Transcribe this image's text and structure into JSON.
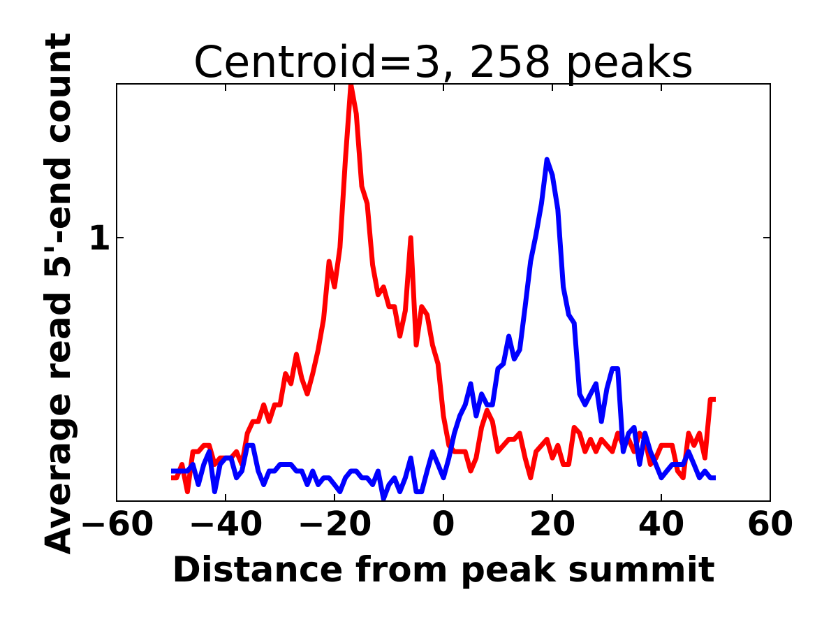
{
  "chart_data": {
    "type": "line",
    "title": "Centroid=3, 258 peaks",
    "xlabel": "Distance from peak summit",
    "ylabel": "Average read 5'-end count",
    "x": [
      -50,
      -49,
      -48,
      -47,
      -46,
      -45,
      -44,
      -43,
      -42,
      -41,
      -40,
      -39,
      -38,
      -37,
      -36,
      -35,
      -34,
      -33,
      -32,
      -31,
      -30,
      -29,
      -28,
      -27,
      -26,
      -25,
      -24,
      -23,
      -22,
      -21,
      -20,
      -19,
      -18,
      -17,
      -16,
      -15,
      -14,
      -13,
      -12,
      -11,
      -10,
      -9,
      -8,
      -7,
      -6,
      -5,
      -4,
      -3,
      -2,
      -1,
      0,
      1,
      2,
      3,
      4,
      5,
      6,
      7,
      8,
      9,
      10,
      11,
      12,
      13,
      14,
      15,
      16,
      17,
      18,
      19,
      20,
      21,
      22,
      23,
      24,
      25,
      26,
      27,
      28,
      29,
      30,
      31,
      32,
      33,
      34,
      35,
      36,
      37,
      38,
      39,
      40,
      41,
      42,
      43,
      44,
      45,
      46,
      47,
      48,
      49,
      50
    ],
    "series": [
      {
        "color": "#ff0000",
        "values": [
          0.48,
          0.48,
          0.5,
          0.46,
          0.52,
          0.52,
          0.53,
          0.53,
          0.5,
          0.51,
          0.51,
          0.51,
          0.52,
          0.5,
          0.55,
          0.57,
          0.57,
          0.6,
          0.57,
          0.6,
          0.6,
          0.66,
          0.64,
          0.7,
          0.65,
          0.62,
          0.66,
          0.71,
          0.78,
          0.93,
          0.86,
          0.97,
          1.27,
          1.6,
          1.46,
          1.17,
          1.11,
          0.92,
          0.84,
          0.86,
          0.81,
          0.81,
          0.74,
          0.8,
          1.0,
          0.72,
          0.81,
          0.79,
          0.72,
          0.68,
          0.58,
          0.53,
          0.52,
          0.52,
          0.52,
          0.49,
          0.51,
          0.56,
          0.59,
          0.57,
          0.52,
          0.53,
          0.54,
          0.54,
          0.55,
          0.51,
          0.48,
          0.52,
          0.53,
          0.54,
          0.51,
          0.53,
          0.5,
          0.5,
          0.56,
          0.55,
          0.52,
          0.54,
          0.52,
          0.54,
          0.53,
          0.52,
          0.55,
          0.53,
          0.54,
          0.52,
          0.55,
          0.54,
          0.5,
          0.51,
          0.53,
          0.53,
          0.53,
          0.49,
          0.48,
          0.55,
          0.53,
          0.55,
          0.51,
          0.61,
          0.61
        ]
      },
      {
        "color": "#0000ff",
        "values": [
          0.49,
          0.49,
          0.49,
          0.49,
          0.5,
          0.47,
          0.5,
          0.52,
          0.46,
          0.5,
          0.51,
          0.51,
          0.48,
          0.49,
          0.53,
          0.53,
          0.49,
          0.47,
          0.49,
          0.49,
          0.5,
          0.5,
          0.5,
          0.49,
          0.49,
          0.47,
          0.49,
          0.47,
          0.48,
          0.48,
          0.47,
          0.46,
          0.48,
          0.49,
          0.49,
          0.48,
          0.48,
          0.47,
          0.49,
          0.45,
          0.47,
          0.48,
          0.46,
          0.48,
          0.51,
          0.46,
          0.46,
          0.49,
          0.52,
          0.5,
          0.48,
          0.51,
          0.55,
          0.58,
          0.6,
          0.64,
          0.58,
          0.62,
          0.6,
          0.6,
          0.67,
          0.68,
          0.74,
          0.69,
          0.71,
          0.81,
          0.93,
          1.01,
          1.11,
          1.27,
          1.21,
          1.09,
          0.86,
          0.79,
          0.77,
          0.62,
          0.6,
          0.62,
          0.64,
          0.57,
          0.63,
          0.67,
          0.67,
          0.52,
          0.55,
          0.56,
          0.5,
          0.55,
          0.52,
          0.5,
          0.48,
          0.49,
          0.5,
          0.5,
          0.5,
          0.52,
          0.5,
          0.48,
          0.49,
          0.48,
          0.48
        ]
      }
    ],
    "xlim": [
      -60,
      60
    ],
    "xticks": [
      {
        "value": -60,
        "label": "−60"
      },
      {
        "value": -40,
        "label": "−40"
      },
      {
        "value": -20,
        "label": "−20"
      },
      0,
      20,
      40,
      60
    ],
    "ylim": [
      0.447,
      1.6
    ],
    "yticks": [
      1
    ],
    "yscale": "log",
    "grid": false
  }
}
